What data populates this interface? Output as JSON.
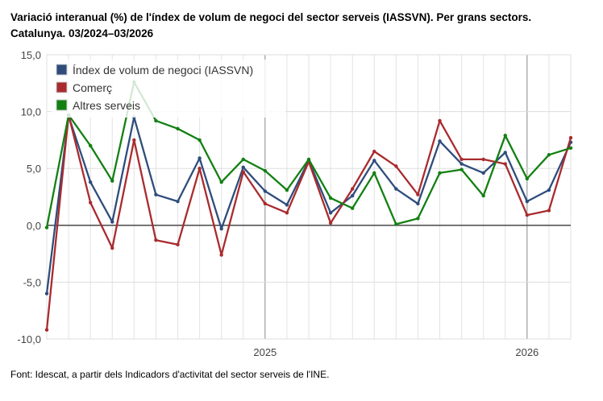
{
  "title_line1": "Variació interanual (%) de l'índex de volum de negoci del sector serveis (IASSVN). Per grans sectors.",
  "title_line2": "Catalunya. 03/2024–03/2026",
  "source": "Font: Idescat, a partir dels Indicadors d'activitat del sector serveis de l'INE.",
  "chart_data": {
    "type": "line",
    "x_ticks": [
      {
        "index": 10,
        "label": "2025"
      },
      {
        "index": 22,
        "label": "2026"
      }
    ],
    "y_ticks": [
      "15,0",
      "10,0",
      "5,0",
      "0,0",
      "-5,0",
      "-10,0"
    ],
    "ylim": [
      -10,
      15
    ],
    "grid": true,
    "legend_position": "top-left",
    "x": [
      "03/2024",
      "04/2024",
      "05/2024",
      "06/2024",
      "07/2024",
      "08/2024",
      "09/2024",
      "10/2024",
      "11/2024",
      "12/2024",
      "01/2025",
      "02/2025",
      "03/2025",
      "04/2025",
      "05/2025",
      "06/2025",
      "07/2025",
      "08/2025",
      "09/2025",
      "10/2025",
      "11/2025",
      "12/2025",
      "01/2026",
      "02/2026",
      "03/2026"
    ],
    "series": [
      {
        "name": "Índex de volum de negoci (IASSVN)",
        "color": "#2e4d7b",
        "values": [
          -6.0,
          9.6,
          3.8,
          0.3,
          9.5,
          2.7,
          2.1,
          5.9,
          -0.3,
          5.1,
          3.0,
          1.8,
          5.7,
          1.1,
          2.6,
          5.7,
          3.2,
          1.9,
          7.4,
          5.4,
          4.6,
          6.4,
          2.1,
          3.1,
          7.3
        ]
      },
      {
        "name": "Comerç",
        "color": "#a92b2e",
        "values": [
          -9.2,
          9.7,
          2.0,
          -2.0,
          7.5,
          -1.3,
          -1.7,
          5.0,
          -2.6,
          4.7,
          1.9,
          1.1,
          5.6,
          0.2,
          3.2,
          6.5,
          5.2,
          2.7,
          9.2,
          5.8,
          5.8,
          5.4,
          0.9,
          1.3,
          7.7
        ]
      },
      {
        "name": "Altres serveis",
        "color": "#128012",
        "values": [
          -0.2,
          9.7,
          7.0,
          3.9,
          12.6,
          9.2,
          8.5,
          7.5,
          3.8,
          5.8,
          4.8,
          3.1,
          5.8,
          2.4,
          1.5,
          4.6,
          0.1,
          0.6,
          4.6,
          4.9,
          2.6,
          7.9,
          4.1,
          6.2,
          6.8
        ]
      }
    ]
  }
}
